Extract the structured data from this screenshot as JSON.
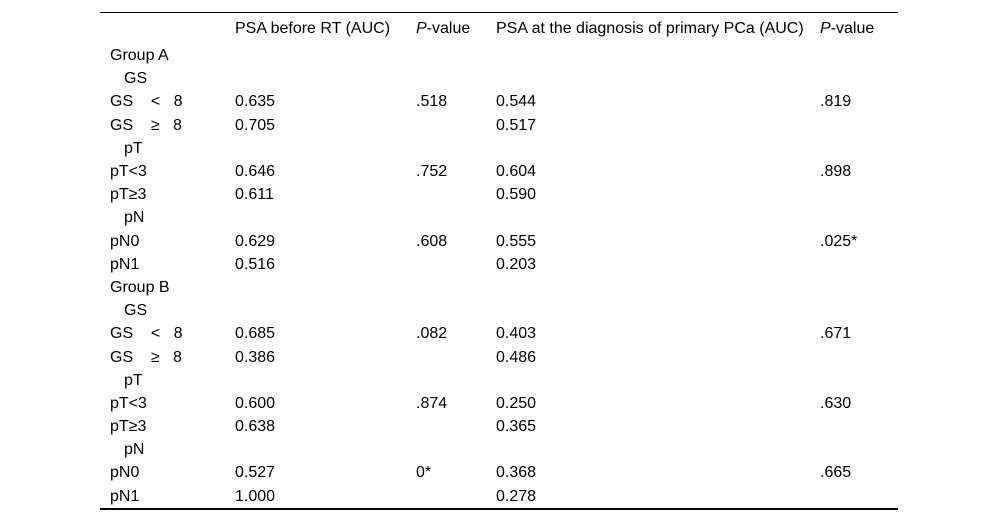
{
  "table": {
    "headers": {
      "row_label": "",
      "auc_before_rt": "PSA before RT (AUC)",
      "pvalue1_italic": "P",
      "pvalue1_rest": "-value",
      "auc_at_diagnosis": "PSA at the diagnosis of primary PCa (AUC)",
      "pvalue2_italic": "P",
      "pvalue2_rest": "-value"
    },
    "rows": [
      {
        "label": "Group A",
        "indent": 0,
        "c1": "",
        "p1": "",
        "c2": "",
        "p2": ""
      },
      {
        "label": "GS",
        "indent": 1,
        "c1": "",
        "p1": "",
        "c2": "",
        "p2": ""
      },
      {
        "label": "GS    <   8",
        "indent": 0,
        "c1": "0.635",
        "p1": ".518",
        "c2": "0.544",
        "p2": ".819"
      },
      {
        "label": "GS    ≥   8",
        "indent": 0,
        "c1": "0.705",
        "p1": "",
        "c2": "0.517",
        "p2": ""
      },
      {
        "label": "pT",
        "indent": 1,
        "c1": "",
        "p1": "",
        "c2": "",
        "p2": ""
      },
      {
        "label": "pT<3",
        "indent": 0,
        "c1": "0.646",
        "p1": ".752",
        "c2": "0.604",
        "p2": ".898"
      },
      {
        "label": "pT≥3",
        "indent": 0,
        "c1": "0.611",
        "p1": "",
        "c2": "0.590",
        "p2": ""
      },
      {
        "label": "pN",
        "indent": 1,
        "c1": "",
        "p1": "",
        "c2": "",
        "p2": ""
      },
      {
        "label": "pN0",
        "indent": 0,
        "c1": "0.629",
        "p1": ".608",
        "c2": "0.555",
        "p2": ".025*"
      },
      {
        "label": "pN1",
        "indent": 0,
        "c1": "0.516",
        "p1": "",
        "c2": "0.203",
        "p2": ""
      },
      {
        "label": "Group B",
        "indent": 0,
        "c1": "",
        "p1": "",
        "c2": "",
        "p2": ""
      },
      {
        "label": "GS",
        "indent": 1,
        "c1": "",
        "p1": "",
        "c2": "",
        "p2": ""
      },
      {
        "label": "GS    <   8",
        "indent": 0,
        "c1": "0.685",
        "p1": ".082",
        "c2": "0.403",
        "p2": ".671"
      },
      {
        "label": "GS    ≥   8",
        "indent": 0,
        "c1": "0.386",
        "p1": "",
        "c2": "0.486",
        "p2": ""
      },
      {
        "label": "pT",
        "indent": 1,
        "c1": "",
        "p1": "",
        "c2": "",
        "p2": ""
      },
      {
        "label": "pT<3",
        "indent": 0,
        "c1": "0.600",
        "p1": ".874",
        "c2": "0.250",
        "p2": ".630"
      },
      {
        "label": "pT≥3",
        "indent": 0,
        "c1": "0.638",
        "p1": "",
        "c2": "0.365",
        "p2": ""
      },
      {
        "label": "pN",
        "indent": 1,
        "c1": "",
        "p1": "",
        "c2": "",
        "p2": ""
      },
      {
        "label": "pN0",
        "indent": 0,
        "c1": "0.527",
        "p1": "0*",
        "c2": "0.368",
        "p2": ".665"
      },
      {
        "label": "pN1",
        "indent": 0,
        "c1": "1.000",
        "p1": "",
        "c2": "0.278",
        "p2": ""
      }
    ],
    "text_color": "#000000",
    "background_color": "#ffffff"
  }
}
